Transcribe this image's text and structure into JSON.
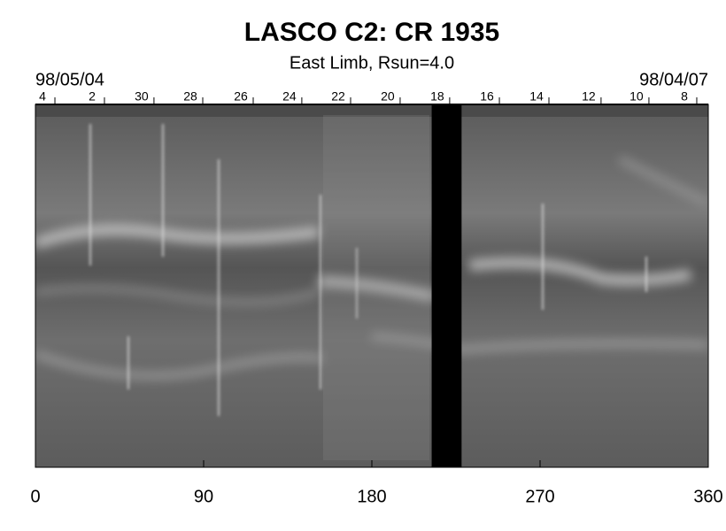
{
  "chart_data": {
    "type": "synoptic-map",
    "title": "LASCO C2: CR 1935",
    "subtitle": "East Limb, Rsun=4.0",
    "start_date": "98/05/04",
    "end_date": "98/04/07",
    "xlim": [
      0,
      360
    ],
    "xticks": [
      0,
      90,
      180,
      270,
      360
    ],
    "top_ticks": [
      {
        "value": 3.8,
        "label": "4"
      },
      {
        "value": 30.3,
        "label": "2"
      },
      {
        "value": 56.8,
        "label": "30"
      },
      {
        "value": 82.9,
        "label": "28"
      },
      {
        "value": 109.9,
        "label": "26"
      },
      {
        "value": 135.9,
        "label": "24"
      },
      {
        "value": 162,
        "label": "22"
      },
      {
        "value": 188.5,
        "label": "20"
      },
      {
        "value": 215,
        "label": "18"
      },
      {
        "value": 241.6,
        "label": "16"
      },
      {
        "value": 268.1,
        "label": "14"
      },
      {
        "value": 296,
        "label": "12"
      },
      {
        "value": 321.6,
        "label": "10"
      },
      {
        "value": 347.2,
        "label": "8"
      }
    ],
    "data_gap": [
      212,
      228
    ],
    "gap_color": "#000000"
  }
}
